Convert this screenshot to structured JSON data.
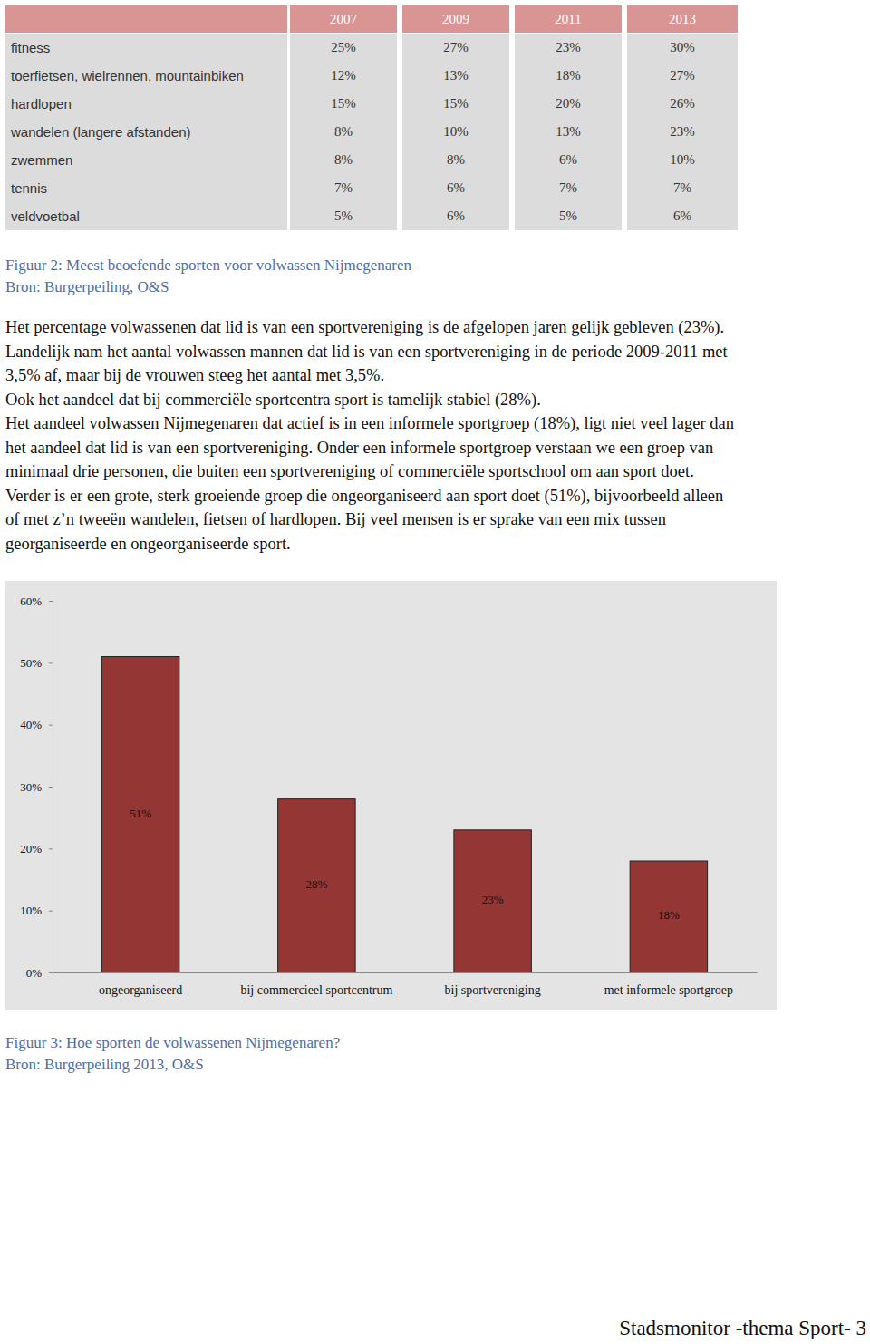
{
  "table": {
    "header": [
      "2007",
      "2009",
      "2011",
      "2013"
    ],
    "rows": [
      [
        "fitness",
        "25%",
        "27%",
        "23%",
        "30%"
      ],
      [
        "toerfietsen, wielrennen, mountainbiken",
        "12%",
        "13%",
        "18%",
        "27%"
      ],
      [
        "hardlopen",
        "15%",
        "15%",
        "20%",
        "26%"
      ],
      [
        "wandelen (langere afstanden)",
        "8%",
        "10%",
        "13%",
        "23%"
      ],
      [
        "zwemmen",
        "8%",
        "8%",
        "6%",
        "10%"
      ],
      [
        "tennis",
        "7%",
        "6%",
        "7%",
        "7%"
      ],
      [
        "veldvoetbal",
        "5%",
        "6%",
        "5%",
        "6%"
      ]
    ]
  },
  "figure2": {
    "caption": "Figuur 2: Meest beoefende sporten voor volwassen Nijmegenaren",
    "source": "Bron: Burgerpeiling, O&S"
  },
  "paragraphs": [
    "Het percentage volwassenen dat lid is van een sportvereniging is de afgelopen jaren gelijk gebleven (23%).",
    "Landelijk nam het aantal volwassen mannen dat lid is van een sportvereniging in de periode 2009-2011 met",
    "3,5% af, maar bij de vrouwen steeg het aantal met 3,5%.",
    "Ook het aandeel dat bij commerciële sportcentra sport is tamelijk stabiel (28%).",
    "Het aandeel volwassen Nijmegenaren dat actief is in een informele sportgroep (18%), ligt niet veel lager dan",
    "het aandeel dat lid is van een sportvereniging. Onder een informele sportgroep verstaan we een groep van",
    "minimaal drie personen, die buiten een sportvereniging of commerciële sportschool om aan sport doet.",
    "Verder is er een grote, sterk groeiende groep die ongeorganiseerd aan sport doet (51%), bijvoorbeeld alleen",
    "of met z’n tweeën wandelen, fietsen of hardlopen. Bij veel mensen is er sprake van een mix tussen",
    "georganiseerde en ongeorganiseerde sport."
  ],
  "chart_data": {
    "type": "bar",
    "title": "Figuur 3: Hoe sporten de volwassenen Nijmegenaren?",
    "categories": [
      "ongeorganiseerd",
      "bij commercieel sportcentrum",
      "bij sportvereniging",
      "met informele sportgroep"
    ],
    "values": [
      51,
      28,
      23,
      18
    ],
    "value_labels": [
      "51%",
      "28%",
      "23%",
      "18%"
    ],
    "color": "#943634",
    "ylim": [
      0,
      60
    ],
    "yticks": [
      {
        "value": 0,
        "label": "0%"
      },
      {
        "value": 10,
        "label": "10%"
      },
      {
        "value": 20,
        "label": "20%"
      },
      {
        "value": 30,
        "label": "30%"
      },
      {
        "value": 40,
        "label": "40%"
      },
      {
        "value": 50,
        "label": "50%"
      },
      {
        "value": 60,
        "label": "60%"
      }
    ],
    "grid": false,
    "data_labels": true
  },
  "figure3_source": "Bron: Burgerpeiling 2013, O&S",
  "footer": "Stadsmonitor -thema Sport- 3"
}
